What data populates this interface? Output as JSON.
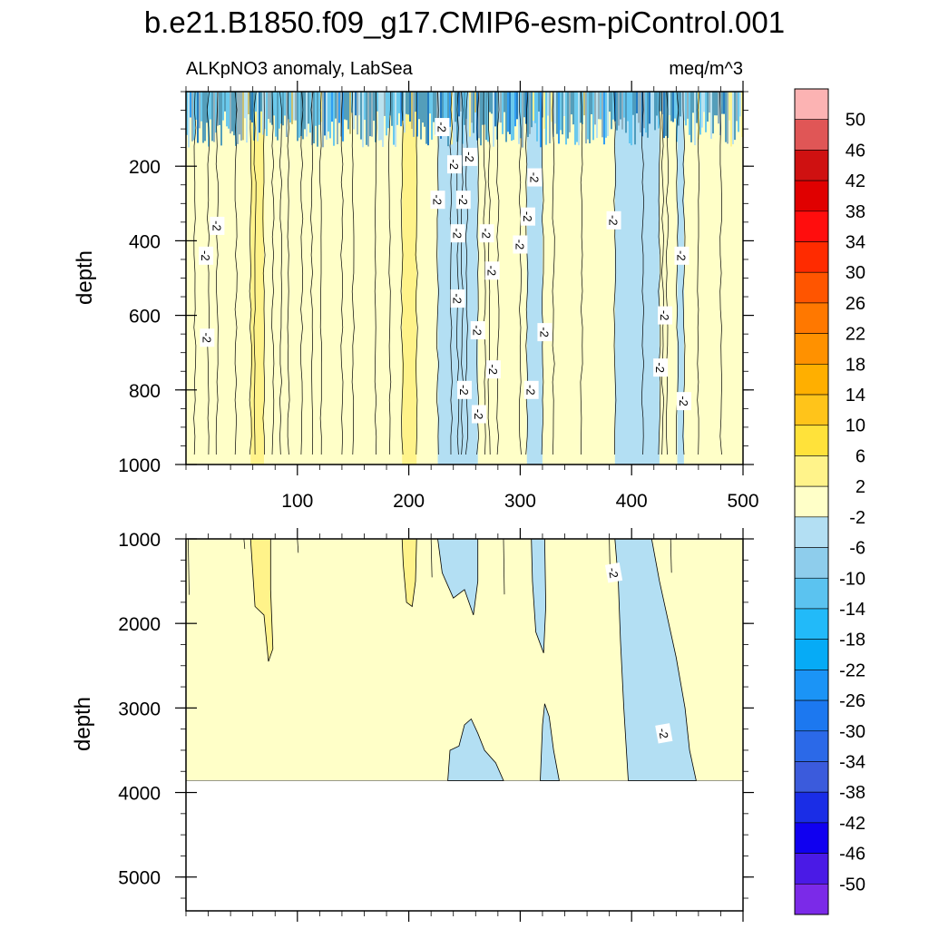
{
  "chart_data": {
    "type": "contour",
    "title": "b.e21.B1850.f09_g17.CMIP6-esm-piControl.001",
    "left_label": "ALKpNO3 anomaly, LabSea",
    "right_label": "meq/m^3",
    "units": "meq/m^3",
    "colorbar": {
      "labels": [
        "50",
        "46",
        "42",
        "38",
        "34",
        "30",
        "26",
        "22",
        "18",
        "14",
        "10",
        "6",
        "2",
        "-2",
        "-6",
        "-10",
        "-14",
        "-18",
        "-22",
        "-26",
        "-30",
        "-34",
        "-38",
        "-42",
        "-46",
        "-50"
      ],
      "colors": [
        "#fcb3b3",
        "#e05656",
        "#cf1111",
        "#e00000",
        "#ff0d0d",
        "#ff2b00",
        "#ff5500",
        "#ff7800",
        "#ff9100",
        "#ffaf00",
        "#ffc41a",
        "#ffe23a",
        "#fff38a",
        "#ffffc8",
        "#b3dff3",
        "#8ecdec",
        "#5bc3f0",
        "#22baf9",
        "#06abf6",
        "#1b94f6",
        "#1c78f0",
        "#2b69e8",
        "#3b5bdc",
        "#1a2de6",
        "#1000f0",
        "#4a1ae6",
        "#7b2ae8"
      ]
    },
    "upper_panel": {
      "xlim": [
        0,
        500
      ],
      "xticks": [
        100,
        200,
        300,
        400,
        500
      ],
      "xtick_labels": [
        "100",
        "200",
        "300",
        "400",
        "500"
      ],
      "ylabel": "depth",
      "ylim": [
        1000,
        0
      ],
      "yticks": [
        200,
        400,
        600,
        800,
        1000
      ],
      "ytick_labels": [
        "200",
        "400",
        "600",
        "800",
        "1000"
      ],
      "regions": [
        {
          "level": "2 to 6",
          "color": "#fff38a",
          "x_ranges": [
            [
              58,
              70
            ],
            [
              194,
              207
            ]
          ]
        },
        {
          "level": "-6 to -2",
          "color": "#b3dff3",
          "x_ranges": [
            [
              226,
              262
            ],
            [
              306,
              320
            ],
            [
              385,
              425
            ],
            [
              441,
              447
            ]
          ]
        }
      ],
      "contour_labels": [
        {
          "text": "-2",
          "x": 230,
          "depth": 95
        },
        {
          "text": "-2",
          "x": 241,
          "depth": 195
        },
        {
          "text": "-2",
          "x": 226,
          "depth": 290
        },
        {
          "text": "-2",
          "x": 249,
          "depth": 290
        },
        {
          "text": "-2",
          "x": 255,
          "depth": 175
        },
        {
          "text": "-2",
          "x": 28,
          "depth": 360
        },
        {
          "text": "-2",
          "x": 18,
          "depth": 440
        },
        {
          "text": "-2",
          "x": 19,
          "depth": 660
        },
        {
          "text": "-2",
          "x": 244,
          "depth": 380
        },
        {
          "text": "-2",
          "x": 270,
          "depth": 380
        },
        {
          "text": "-2",
          "x": 275,
          "depth": 480
        },
        {
          "text": "-2",
          "x": 244,
          "depth": 555
        },
        {
          "text": "-2",
          "x": 262,
          "depth": 640
        },
        {
          "text": "-2",
          "x": 276,
          "depth": 745
        },
        {
          "text": "-2",
          "x": 250,
          "depth": 800
        },
        {
          "text": "-2",
          "x": 263,
          "depth": 865
        },
        {
          "text": "-2",
          "x": 313,
          "depth": 230
        },
        {
          "text": "-2",
          "x": 307,
          "depth": 335
        },
        {
          "text": "-2",
          "x": 300,
          "depth": 410
        },
        {
          "text": "-2",
          "x": 322,
          "depth": 645
        },
        {
          "text": "-2",
          "x": 310,
          "depth": 800
        },
        {
          "text": "-2",
          "x": 384,
          "depth": 345
        },
        {
          "text": "-2",
          "x": 445,
          "depth": 440
        },
        {
          "text": "-2",
          "x": 430,
          "depth": 600
        },
        {
          "text": "-2",
          "x": 426,
          "depth": 740
        },
        {
          "text": "-2",
          "x": 447,
          "depth": 830
        }
      ]
    },
    "lower_panel": {
      "xlim": [
        0,
        500
      ],
      "ylabel": "depth",
      "ylim": [
        5400,
        1000
      ],
      "yticks": [
        1000,
        2000,
        3000,
        4000,
        5000
      ],
      "ytick_labels": [
        "1000",
        "2000",
        "3000",
        "4000",
        "5000"
      ],
      "data_bottom_depth": 3860,
      "regions": [
        {
          "level": "2 to 6",
          "color": "#fff38a",
          "x_ranges": [
            [
              58,
              76
            ],
            [
              195,
              207
            ]
          ]
        },
        {
          "level": "-6 to -2",
          "color": "#b3dff3",
          "x_ranges": [
            [
              226,
              262
            ],
            [
              310,
              322
            ],
            [
              385,
              440
            ],
            [
              235,
              285
            ],
            [
              318,
              335
            ]
          ]
        }
      ],
      "contour_labels": [
        {
          "text": "-2",
          "x": 384,
          "depth": 1400
        },
        {
          "text": "-2",
          "x": 429,
          "depth": 3300
        }
      ]
    }
  }
}
